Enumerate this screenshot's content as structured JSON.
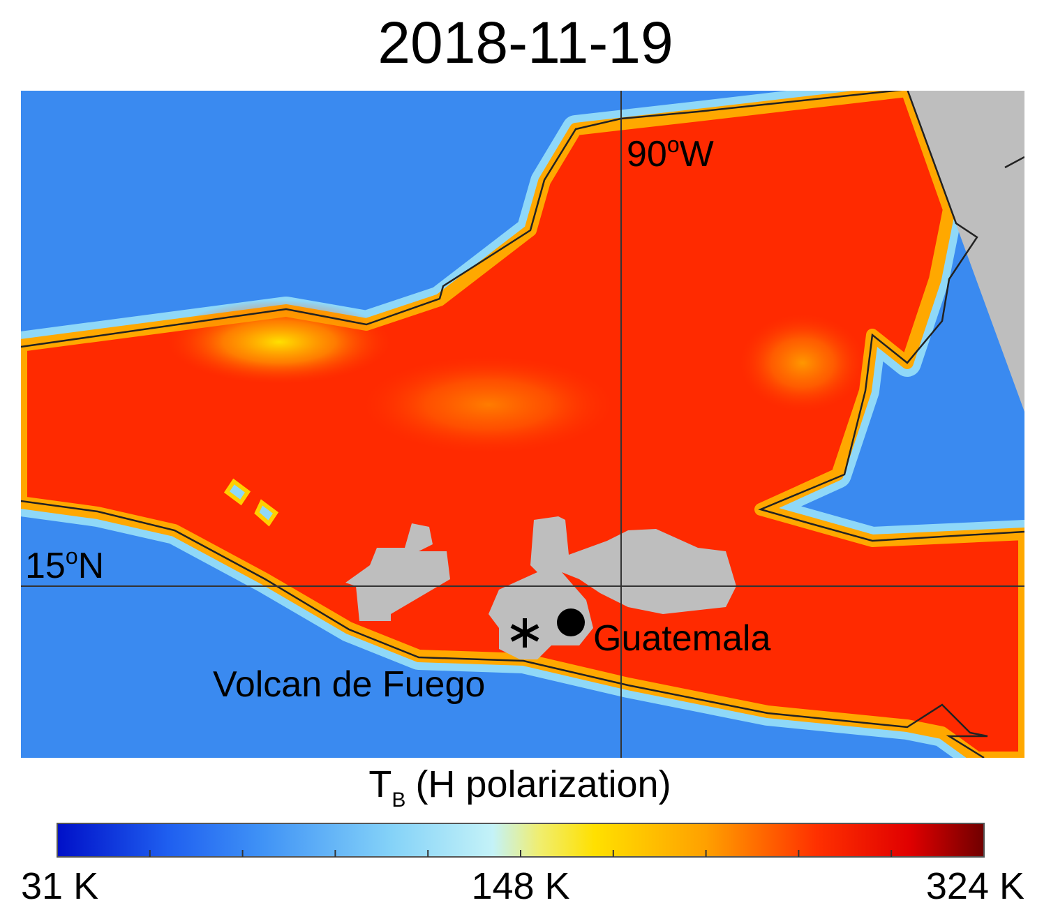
{
  "title": "2018-11-19",
  "map": {
    "lon_label": {
      "number": "90",
      "degree": "o",
      "hemisphere": "W"
    },
    "lat_label": {
      "number": "15",
      "degree": "o",
      "hemisphere": "N"
    },
    "places": [
      "Guatemala",
      "Volcan de Fuego"
    ]
  },
  "colorbar": {
    "label": {
      "symbol": "T",
      "subscript": "B",
      "text": "(H polarization)"
    },
    "ticks": [
      "31 K",
      "148 K",
      "324 K"
    ]
  }
}
